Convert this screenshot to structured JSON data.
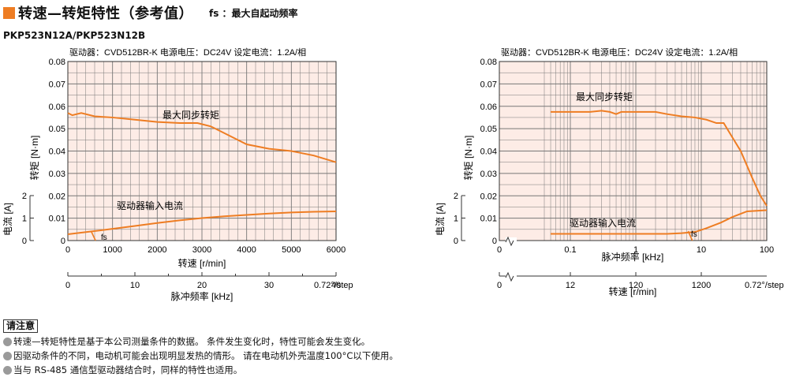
{
  "header": {
    "title": "转速—转矩特性（参考值）",
    "fs_note": "fs ：最大自起动频率",
    "model": "PKP523N12A/PKP523N12B",
    "title_color": "#ee7d23"
  },
  "notes": {
    "title": "请注意",
    "items": [
      "转速—转矩特性是基于本公司测量条件的数据。 条件发生变化时，特性可能会发生变化。",
      "因驱动条件的不同，电动机可能会出现明显发热的情形。 请在电动机外壳温度100°C以下使用。",
      "当与 RS-485 通信型驱动器结合时，同样的特性也适用。"
    ]
  },
  "chart_data": [
    {
      "type": "line",
      "driver_label": "驱动器：CVD512BR-K  电源电压：DC24V  设定电流：1.2A/相",
      "ylabel": "转矩 [N·m]",
      "ylabel_current": "电流 [A]",
      "xlabel": "转速 [r/min]",
      "xlabel_pulse": "脉冲频率 [kHz]",
      "xscale": "linear",
      "x_ticks": [
        "0",
        "1000",
        "2000",
        "3000",
        "4000",
        "5000",
        "6000"
      ],
      "y_ticks": [
        "0",
        "0.01",
        "0.02",
        "0.03",
        "0.04",
        "0.05",
        "0.06",
        "0.07",
        "0.08"
      ],
      "current_ticks": [
        "0",
        "1",
        "2"
      ],
      "pulse_ticks": [
        "0",
        "10",
        "20",
        "30",
        "40"
      ],
      "step_label": "0.72°/step",
      "xlim": [
        0,
        6000
      ],
      "ylim": [
        0,
        0.08
      ],
      "current_lim": [
        0,
        2
      ],
      "grid": true,
      "fs_label": "fs",
      "series": [
        {
          "name": "最大同步转矩",
          "axis": "torque",
          "color": "#ee7d23",
          "points": [
            [
              0,
              0.057
            ],
            [
              100,
              0.056
            ],
            [
              300,
              0.057
            ],
            [
              600,
              0.0555
            ],
            [
              1000,
              0.055
            ],
            [
              1500,
              0.054
            ],
            [
              2000,
              0.053
            ],
            [
              2500,
              0.0525
            ],
            [
              2900,
              0.0525
            ],
            [
              3200,
              0.051
            ],
            [
              3600,
              0.047
            ],
            [
              4000,
              0.043
            ],
            [
              4500,
              0.041
            ],
            [
              5000,
              0.04
            ],
            [
              5500,
              0.038
            ],
            [
              6000,
              0.035
            ]
          ]
        },
        {
          "name": "驱动器输入电流",
          "axis": "current",
          "color": "#ee7d23",
          "points": [
            [
              0,
              0.28
            ],
            [
              500,
              0.4
            ],
            [
              1000,
              0.52
            ],
            [
              1500,
              0.65
            ],
            [
              2000,
              0.78
            ],
            [
              2500,
              0.9
            ],
            [
              3000,
              1.0
            ],
            [
              3500,
              1.08
            ],
            [
              4000,
              1.14
            ],
            [
              4500,
              1.2
            ],
            [
              5000,
              1.25
            ],
            [
              5500,
              1.28
            ],
            [
              6000,
              1.3
            ]
          ]
        }
      ],
      "fs_point": [
        600,
        0
      ]
    },
    {
      "type": "line",
      "driver_label": "驱动器：CVD512BR-K  电源电压：DC24V  设定电流：1.2A/相",
      "ylabel": "转矩 [N·m]",
      "ylabel_current": "电流 [A]",
      "xlabel": "脉冲频率 [kHz]",
      "xlabel_speed": "转速 [r/min]",
      "xscale": "log",
      "x_ticks": [
        "0.1",
        "1",
        "10",
        "100"
      ],
      "x_break_label": "0",
      "y_ticks": [
        "0",
        "0.01",
        "0.02",
        "0.03",
        "0.04",
        "0.05",
        "0.06",
        "0.07",
        "0.08"
      ],
      "current_ticks": [
        "0",
        "1",
        "2"
      ],
      "speed_ticks": [
        "12",
        "120",
        "1200"
      ],
      "speed_break_label": "0",
      "step_label": "0.72°/step",
      "xlim": [
        0.04,
        100
      ],
      "ylim": [
        0,
        0.08
      ],
      "current_lim": [
        0,
        2
      ],
      "grid": true,
      "fs_label": "fs",
      "series": [
        {
          "name": "最大同步转矩",
          "axis": "torque",
          "color": "#ee7d23",
          "points": [
            [
              0.05,
              0.0575
            ],
            [
              0.1,
              0.0575
            ],
            [
              0.2,
              0.0575
            ],
            [
              0.3,
              0.058
            ],
            [
              0.4,
              0.0575
            ],
            [
              0.5,
              0.0565
            ],
            [
              0.6,
              0.0575
            ],
            [
              0.8,
              0.0575
            ],
            [
              1,
              0.0575
            ],
            [
              2,
              0.0575
            ],
            [
              3,
              0.0565
            ],
            [
              5,
              0.0555
            ],
            [
              8,
              0.055
            ],
            [
              12,
              0.054
            ],
            [
              17,
              0.0525
            ],
            [
              22,
              0.0525
            ],
            [
              26,
              0.049
            ],
            [
              30,
              0.046
            ],
            [
              40,
              0.04
            ],
            [
              60,
              0.028
            ],
            [
              80,
              0.02
            ],
            [
              100,
              0.0155
            ]
          ]
        },
        {
          "name": "驱动器输入电流",
          "axis": "current",
          "color": "#ee7d23",
          "points": [
            [
              0.05,
              0.3
            ],
            [
              0.1,
              0.3
            ],
            [
              0.5,
              0.3
            ],
            [
              1,
              0.3
            ],
            [
              3,
              0.3
            ],
            [
              5,
              0.33
            ],
            [
              8,
              0.38
            ],
            [
              12,
              0.55
            ],
            [
              20,
              0.8
            ],
            [
              30,
              1.05
            ],
            [
              50,
              1.3
            ],
            [
              100,
              1.35
            ]
          ]
        }
      ],
      "fs_point": [
        7,
        0
      ]
    }
  ]
}
